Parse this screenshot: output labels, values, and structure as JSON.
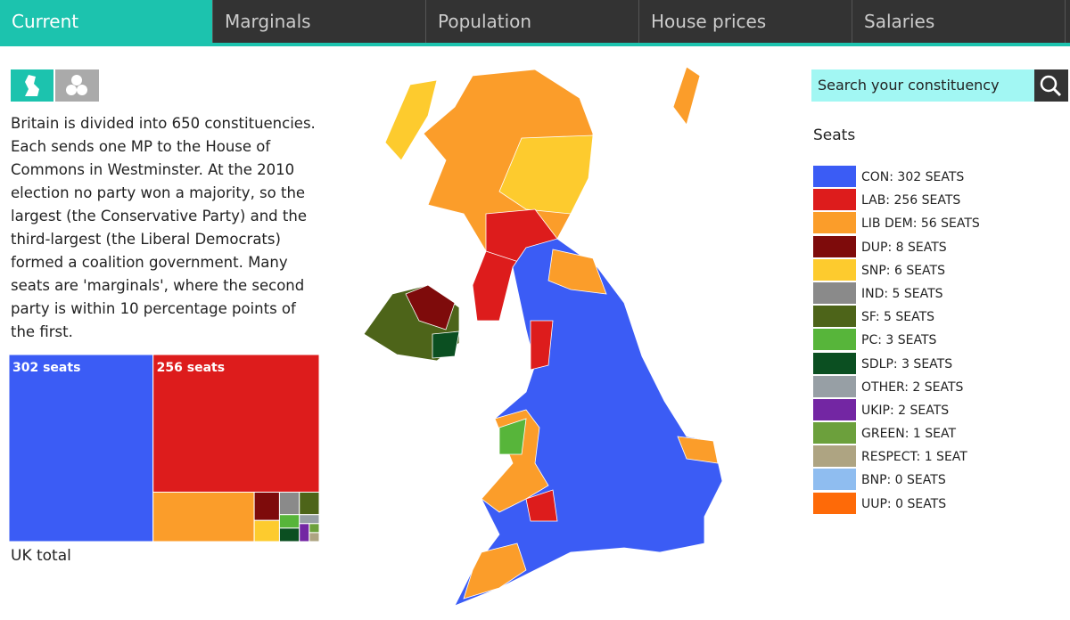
{
  "tabs": [
    "Current",
    "Marginals",
    "Population",
    "House prices",
    "Salaries"
  ],
  "active_tab": 0,
  "description": "Britain is divided into 650 constituencies. Each sends one MP to the House of Commons in Westminster. At the 2010 election no party won a majority, so the largest (the Conservative Party) and the third-largest (the Liberal Democrats) formed a coalition government. Many seats are 'marginals', where the second party is within 10 percentage points of the first.",
  "search": {
    "placeholder": "Search your constituency"
  },
  "legend": {
    "title": "Seats",
    "items": [
      {
        "label": "CON: 302 SEATS",
        "seats": 302,
        "color": "#3b5cf5"
      },
      {
        "label": "LAB: 256 SEATS",
        "seats": 256,
        "color": "#dd1c1c"
      },
      {
        "label": "LIB DEM: 56 SEATS",
        "seats": 56,
        "color": "#fb9d2a"
      },
      {
        "label": "DUP: 8 SEATS",
        "seats": 8,
        "color": "#7e0b0b"
      },
      {
        "label": "SNP: 6 SEATS",
        "seats": 6,
        "color": "#fdcb2e"
      },
      {
        "label": "IND: 5 SEATS",
        "seats": 5,
        "color": "#8a8a8a"
      },
      {
        "label": "SF: 5 SEATS",
        "seats": 5,
        "color": "#4d6419"
      },
      {
        "label": "PC: 3 SEATS",
        "seats": 3,
        "color": "#57b53a"
      },
      {
        "label": "SDLP: 3 SEATS",
        "seats": 3,
        "color": "#0b4f21"
      },
      {
        "label": "OTHER: 2 SEATS",
        "seats": 2,
        "color": "#979fa5"
      },
      {
        "label": "UKIP: 2 SEATS",
        "seats": 2,
        "color": "#7326a3"
      },
      {
        "label": "GREEN: 1 SEAT",
        "seats": 1,
        "color": "#6ca03c"
      },
      {
        "label": "RESPECT: 1 SEAT",
        "seats": 1,
        "color": "#aea482"
      },
      {
        "label": "BNP: 0 SEATS",
        "seats": 0,
        "color": "#8fbdf0"
      },
      {
        "label": "UUP: 0 SEATS",
        "seats": 0,
        "color": "#fe6a08"
      }
    ]
  },
  "treemap": {
    "labels": [
      "302 seats",
      "256 seats"
    ],
    "caption": "UK total"
  }
}
